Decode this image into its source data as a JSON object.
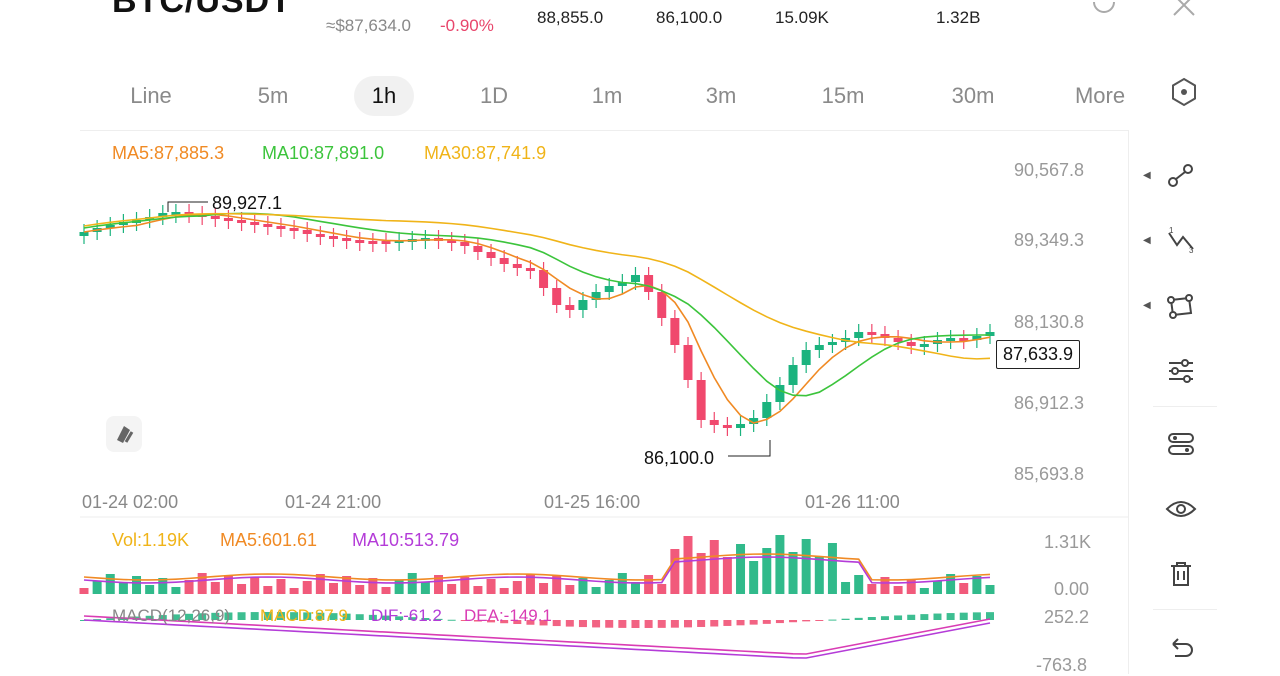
{
  "header": {
    "symbol": "BTC/USDT",
    "converted_price": "≈$87,634.0",
    "change_percent": "-0.90%",
    "high_24h": "88,855.0",
    "low_24h": "86,100.0",
    "volume_base": "15.09K",
    "volume_quote": "1.32B"
  },
  "tabs": [
    {
      "label": "Line"
    },
    {
      "label": "5m"
    },
    {
      "label": "1h",
      "active": true
    },
    {
      "label": "1D"
    },
    {
      "label": "1m"
    },
    {
      "label": "3m"
    },
    {
      "label": "15m"
    },
    {
      "label": "30m"
    },
    {
      "label": "More"
    }
  ],
  "indicators": {
    "ma5": "MA5:87,885.3",
    "ma10": "MA10:87,891.0",
    "ma30": "MA30:87,741.9",
    "vol": "Vol:1.19K",
    "vol_ma5": "MA5:601.61",
    "vol_ma10": "MA10:513.79",
    "macd_params": "MACD(12,26,9)",
    "macd": "MACD:87.9",
    "dif": "DIF:-61.2",
    "dea": "DEA:-149.1"
  },
  "price_axis": [
    "90,567.8",
    "89,349.3",
    "88,130.8",
    "86,912.3",
    "85,693.8"
  ],
  "volume_axis": [
    "1.31K",
    "0.00"
  ],
  "macd_axis": [
    "252.2",
    "-763.8"
  ],
  "time_axis": [
    "01-24 02:00",
    "01-24 21:00",
    "01-25 16:00",
    "01-26 11:00"
  ],
  "annotations": {
    "high_label": "89,927.1",
    "low_label": "86,100.0",
    "last_price": "87,633.9"
  },
  "colors": {
    "up": "#1bb37e",
    "down": "#f0486d",
    "ma5": "#f08a24",
    "ma10": "#3cc43c",
    "ma30": "#f0b419",
    "vol_ma10": "#b43cd8",
    "dea": "#d93cb4"
  },
  "toolbar_icons": [
    "trend-line-icon",
    "fib-icon",
    "shape-icon",
    "indicator-settings-icon",
    "layout-toggle-icon",
    "visibility-icon",
    "delete-icon",
    "undo-icon"
  ]
}
